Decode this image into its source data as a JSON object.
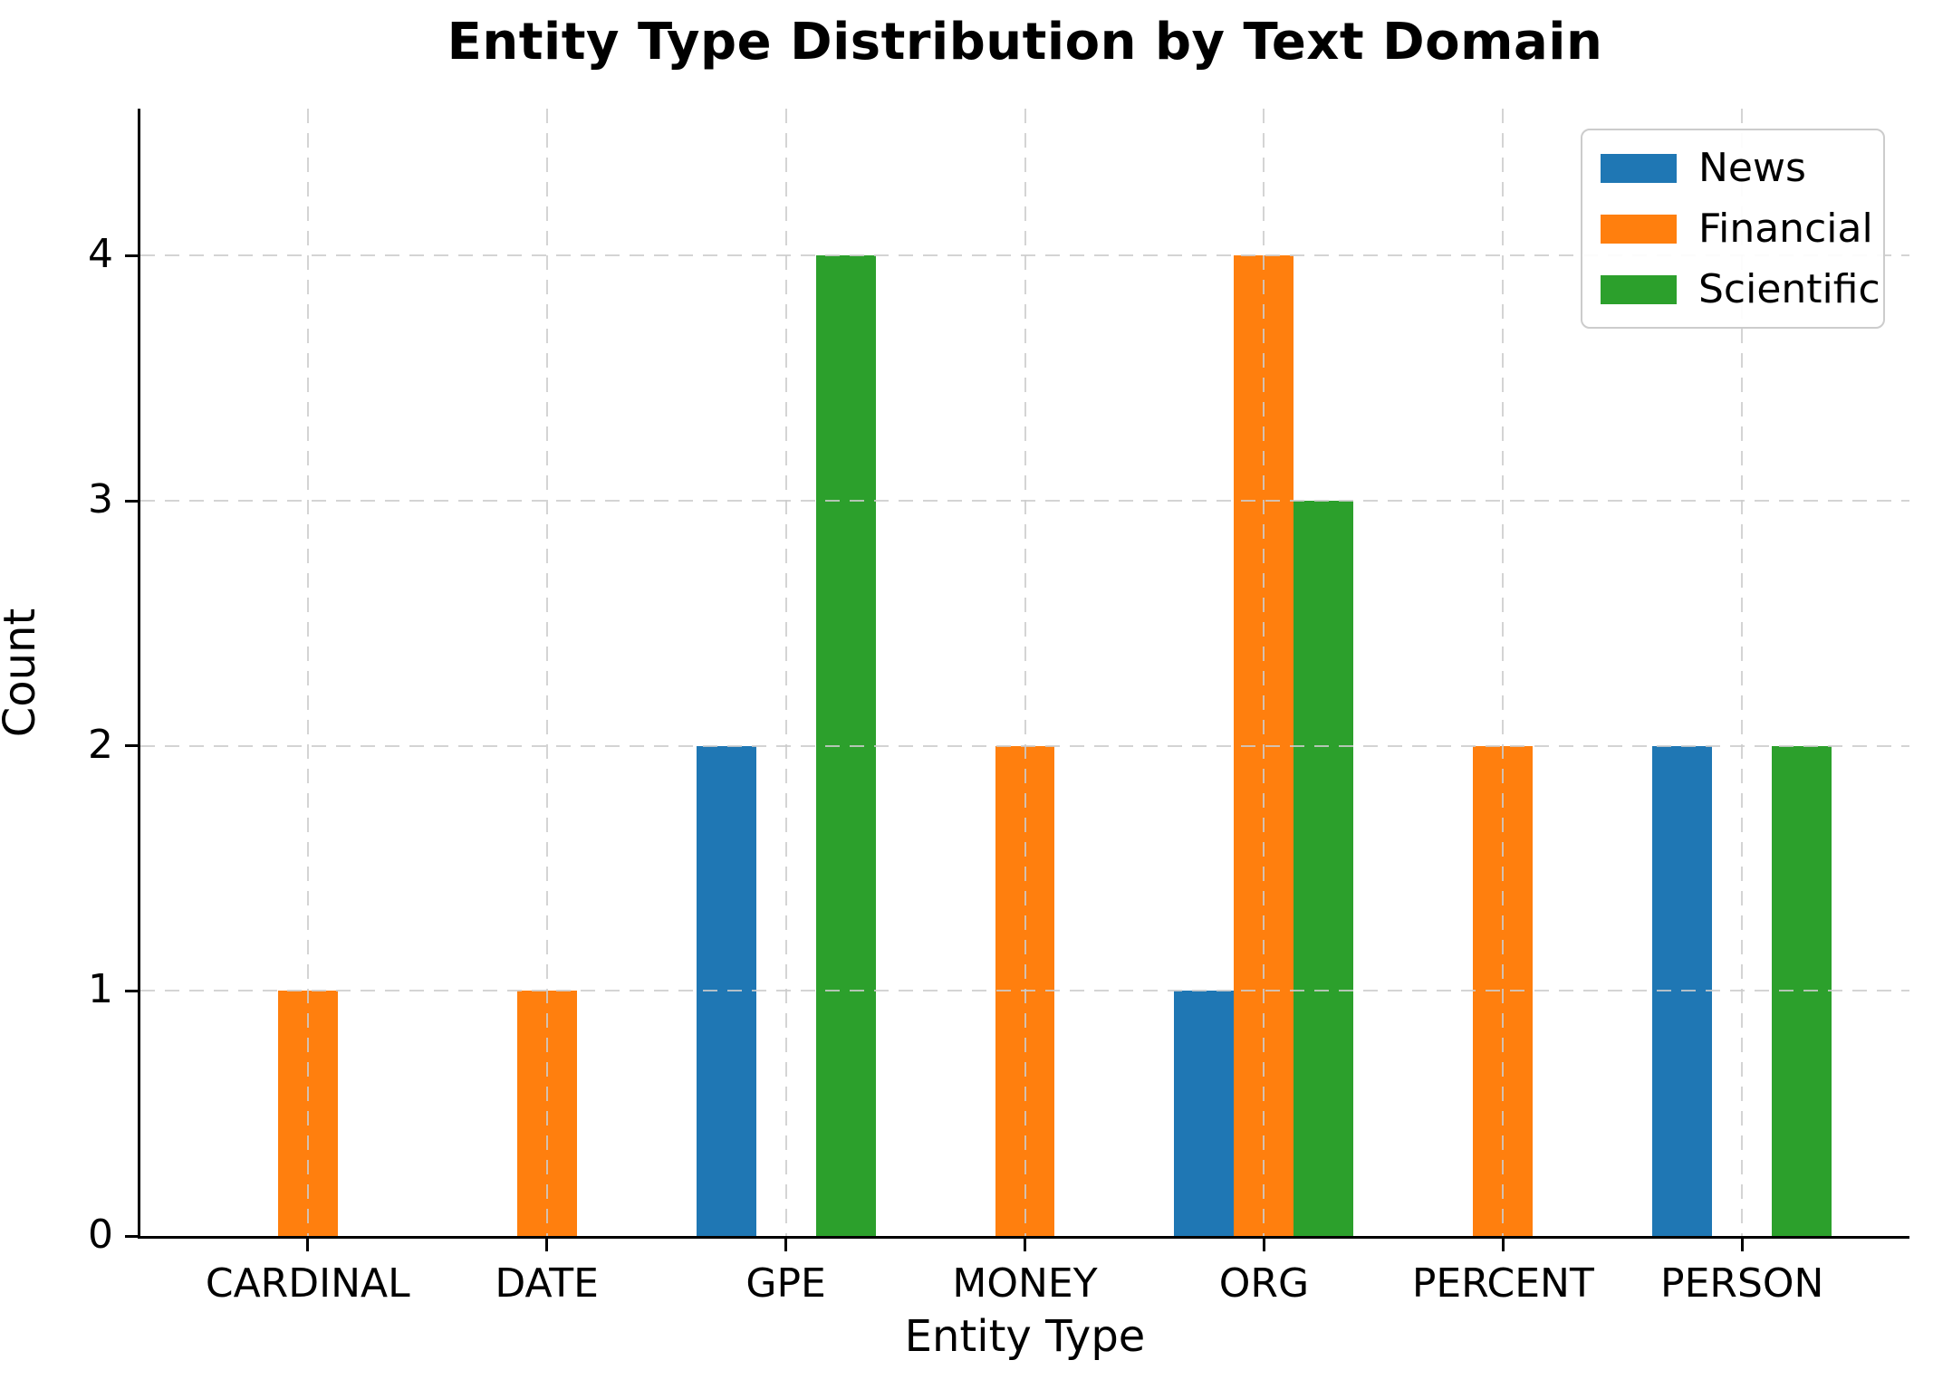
{
  "chart_data": {
    "type": "bar",
    "title": "Entity Type Distribution by Text Domain",
    "xlabel": "Entity Type",
    "ylabel": "Count",
    "categories": [
      "CARDINAL",
      "DATE",
      "GPE",
      "MONEY",
      "ORG",
      "PERCENT",
      "PERSON"
    ],
    "series": [
      {
        "name": "News",
        "color": "#1f77b4",
        "values": [
          0,
          0,
          2,
          0,
          1,
          0,
          2
        ]
      },
      {
        "name": "Financial",
        "color": "#ff7f0e",
        "values": [
          1,
          1,
          0,
          2,
          4,
          2,
          0
        ]
      },
      {
        "name": "Scientific",
        "color": "#2ca02c",
        "values": [
          0,
          0,
          4,
          0,
          3,
          0,
          2
        ]
      }
    ],
    "yticks": [
      0,
      1,
      2,
      3,
      4
    ],
    "ylim": [
      0,
      4.6
    ],
    "xlim": [
      -0.7,
      6.7
    ],
    "bar_width": 0.25,
    "grid": "dashed",
    "grid_above_bars": true,
    "legend_position": "upper right",
    "legend_labels": [
      "News",
      "Financial",
      "Scientific"
    ]
  }
}
